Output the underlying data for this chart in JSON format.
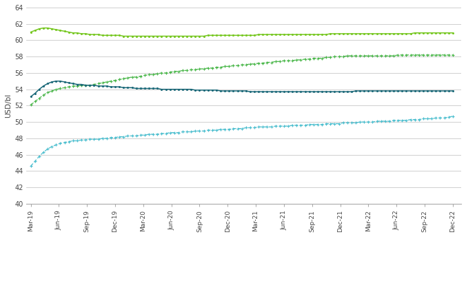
{
  "ylabel": "USD/bl",
  "ylim": [
    40,
    64
  ],
  "yticks": [
    40,
    42,
    44,
    46,
    48,
    50,
    52,
    54,
    56,
    58,
    60,
    62,
    64
  ],
  "x_labels": [
    "Mar-19",
    "Jun-19",
    "Sep-19",
    "Dec-19",
    "Mar-20",
    "Jun-20",
    "Sep-20",
    "Dec-20",
    "Mar-21",
    "Jun-21",
    "Sep-21",
    "Dec-21",
    "Mar-22",
    "Jun-22",
    "Sep-22",
    "Dec-22"
  ],
  "wti_2019": [
    53.1,
    53.5,
    54.0,
    54.4,
    54.7,
    54.9,
    55.0,
    55.0,
    54.9,
    54.8,
    54.7,
    54.6,
    54.6,
    54.5,
    54.5,
    54.5,
    54.4,
    54.4,
    54.4,
    54.3,
    54.3,
    54.3,
    54.2,
    54.2,
    54.2,
    54.1,
    54.1,
    54.1,
    54.1,
    54.1,
    54.1,
    54.0,
    54.0,
    54.0,
    54.0,
    54.0,
    54.0,
    54.0,
    54.0,
    53.9,
    53.9,
    53.9,
    53.9,
    53.9,
    53.9,
    53.8,
    53.8,
    53.8,
    53.8,
    53.8,
    53.8,
    53.8,
    53.7,
    53.7,
    53.7,
    53.7,
    53.7,
    53.7,
    53.7,
    53.7,
    53.7,
    53.7,
    53.7,
    53.7,
    53.7,
    53.7,
    53.7,
    53.7,
    53.7,
    53.7,
    53.7,
    53.7,
    53.7,
    53.7,
    53.7,
    53.7,
    53.7,
    53.8,
    53.8,
    53.8,
    53.8,
    53.8,
    53.8,
    53.8,
    53.8,
    53.8,
    53.8,
    53.8,
    53.8,
    53.8,
    53.8,
    53.8,
    53.8,
    53.8,
    53.8,
    53.8,
    53.8,
    53.8,
    53.8,
    53.8,
    53.8
  ],
  "brent_2019": [
    61.0,
    61.2,
    61.4,
    61.5,
    61.5,
    61.4,
    61.3,
    61.2,
    61.1,
    61.0,
    60.9,
    60.9,
    60.8,
    60.8,
    60.7,
    60.7,
    60.7,
    60.6,
    60.6,
    60.6,
    60.6,
    60.6,
    60.5,
    60.5,
    60.5,
    60.5,
    60.5,
    60.5,
    60.5,
    60.5,
    60.5,
    60.5,
    60.5,
    60.5,
    60.5,
    60.5,
    60.5,
    60.5,
    60.5,
    60.5,
    60.5,
    60.5,
    60.6,
    60.6,
    60.6,
    60.6,
    60.6,
    60.6,
    60.6,
    60.6,
    60.6,
    60.6,
    60.6,
    60.6,
    60.7,
    60.7,
    60.7,
    60.7,
    60.7,
    60.7,
    60.7,
    60.7,
    60.7,
    60.7,
    60.7,
    60.7,
    60.7,
    60.7,
    60.7,
    60.7,
    60.7,
    60.8,
    60.8,
    60.8,
    60.8,
    60.8,
    60.8,
    60.8,
    60.8,
    60.8,
    60.8,
    60.8,
    60.8,
    60.8,
    60.8,
    60.8,
    60.8,
    60.8,
    60.8,
    60.8,
    60.8,
    60.9,
    60.9,
    60.9,
    60.9,
    60.9,
    60.9,
    60.9,
    60.9,
    60.9,
    60.9
  ],
  "wti_2018": [
    44.6,
    45.2,
    45.8,
    46.3,
    46.7,
    47.0,
    47.2,
    47.4,
    47.5,
    47.6,
    47.7,
    47.7,
    47.8,
    47.8,
    47.9,
    47.9,
    47.9,
    48.0,
    48.0,
    48.1,
    48.1,
    48.2,
    48.2,
    48.3,
    48.3,
    48.3,
    48.4,
    48.4,
    48.5,
    48.5,
    48.5,
    48.6,
    48.6,
    48.7,
    48.7,
    48.7,
    48.8,
    48.8,
    48.8,
    48.9,
    48.9,
    48.9,
    49.0,
    49.0,
    49.0,
    49.1,
    49.1,
    49.1,
    49.2,
    49.2,
    49.2,
    49.3,
    49.3,
    49.3,
    49.4,
    49.4,
    49.4,
    49.4,
    49.5,
    49.5,
    49.5,
    49.5,
    49.6,
    49.6,
    49.6,
    49.6,
    49.7,
    49.7,
    49.7,
    49.7,
    49.8,
    49.8,
    49.8,
    49.8,
    49.9,
    49.9,
    49.9,
    49.9,
    50.0,
    50.0,
    50.0,
    50.0,
    50.1,
    50.1,
    50.1,
    50.1,
    50.2,
    50.2,
    50.2,
    50.2,
    50.3,
    50.3,
    50.3,
    50.4,
    50.4,
    50.4,
    50.5,
    50.5,
    50.5,
    50.6,
    50.7
  ],
  "brent_2018": [
    52.1,
    52.5,
    52.9,
    53.3,
    53.6,
    53.8,
    54.0,
    54.1,
    54.2,
    54.3,
    54.4,
    54.4,
    54.5,
    54.5,
    54.5,
    54.6,
    54.7,
    54.8,
    54.9,
    55.0,
    55.1,
    55.2,
    55.3,
    55.4,
    55.5,
    55.5,
    55.6,
    55.7,
    55.8,
    55.8,
    55.9,
    56.0,
    56.0,
    56.1,
    56.2,
    56.2,
    56.3,
    56.3,
    56.4,
    56.4,
    56.5,
    56.5,
    56.6,
    56.6,
    56.7,
    56.7,
    56.8,
    56.8,
    56.9,
    56.9,
    57.0,
    57.0,
    57.1,
    57.1,
    57.2,
    57.2,
    57.3,
    57.3,
    57.4,
    57.4,
    57.5,
    57.5,
    57.5,
    57.6,
    57.6,
    57.7,
    57.7,
    57.8,
    57.8,
    57.8,
    57.9,
    57.9,
    58.0,
    58.0,
    58.0,
    58.1,
    58.1,
    58.1,
    58.1,
    58.1,
    58.1,
    58.1,
    58.1,
    58.1,
    58.1,
    58.1,
    58.1,
    58.2,
    58.2,
    58.2,
    58.2,
    58.2,
    58.2,
    58.2,
    58.2,
    58.2,
    58.2,
    58.2,
    58.2,
    58.2,
    58.2
  ],
  "wti_color": "#1a6878",
  "brent_color": "#76c720",
  "wti_2018_color": "#4dbfcf",
  "brent_2018_color": "#4db84d",
  "background_color": "#ffffff",
  "grid_color": "#c8c8c8"
}
